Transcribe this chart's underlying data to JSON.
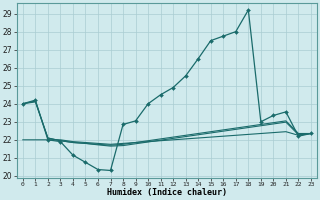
{
  "xlabel": "Humidex (Indice chaleur)",
  "bg_color": "#d0eaed",
  "grid_color": "#aacdd2",
  "line_color": "#1a6b6b",
  "xlim": [
    -0.5,
    23.5
  ],
  "ylim": [
    19.9,
    29.6
  ],
  "yticks": [
    20,
    21,
    22,
    23,
    24,
    25,
    26,
    27,
    28,
    29
  ],
  "xticks": [
    0,
    1,
    2,
    3,
    4,
    5,
    6,
    7,
    8,
    9,
    10,
    11,
    12,
    13,
    14,
    15,
    16,
    17,
    18,
    19,
    20,
    21,
    22,
    23
  ],
  "main_x": [
    0,
    1,
    2,
    3,
    4,
    5,
    6,
    7,
    8,
    9,
    10,
    11,
    12,
    13,
    14,
    15,
    16,
    17,
    18,
    19,
    20,
    21,
    22,
    23
  ],
  "main_y": [
    24.0,
    24.2,
    22.0,
    21.9,
    21.15,
    20.75,
    20.35,
    20.3,
    22.85,
    23.05,
    24.0,
    24.5,
    24.9,
    25.55,
    26.5,
    27.5,
    27.75,
    28.0,
    29.2,
    23.0,
    23.35,
    23.55,
    22.2,
    22.35
  ],
  "flat1_x": [
    0,
    1,
    2,
    3,
    4,
    5,
    6,
    7,
    8,
    9,
    10,
    11,
    12,
    13,
    14,
    15,
    16,
    17,
    18,
    19,
    20,
    21,
    22,
    23
  ],
  "flat1_y": [
    24.0,
    24.15,
    22.1,
    21.95,
    21.85,
    21.8,
    21.75,
    21.7,
    21.75,
    21.85,
    21.95,
    22.05,
    22.15,
    22.25,
    22.35,
    22.45,
    22.55,
    22.65,
    22.75,
    22.85,
    22.95,
    23.05,
    22.35,
    22.35
  ],
  "flat2_x": [
    0,
    1,
    2,
    3,
    4,
    5,
    6,
    7,
    8,
    9,
    10,
    11,
    12,
    13,
    14,
    15,
    16,
    17,
    18,
    19,
    20,
    21,
    22,
    23
  ],
  "flat2_y": [
    24.0,
    24.1,
    22.1,
    21.95,
    21.85,
    21.8,
    21.72,
    21.65,
    21.68,
    21.78,
    21.88,
    21.98,
    22.08,
    22.18,
    22.28,
    22.38,
    22.48,
    22.58,
    22.68,
    22.78,
    22.88,
    22.98,
    22.28,
    22.35
  ],
  "flat3_x": [
    0,
    1,
    2,
    3,
    4,
    5,
    6,
    7,
    8,
    9,
    10,
    11,
    12,
    13,
    14,
    15,
    16,
    17,
    18,
    19,
    20,
    21,
    22,
    23
  ],
  "flat3_y": [
    22.0,
    22.0,
    22.0,
    22.0,
    21.9,
    21.85,
    21.8,
    21.75,
    21.8,
    21.85,
    21.9,
    21.95,
    22.0,
    22.05,
    22.1,
    22.15,
    22.2,
    22.25,
    22.3,
    22.35,
    22.4,
    22.45,
    22.25,
    22.35
  ]
}
